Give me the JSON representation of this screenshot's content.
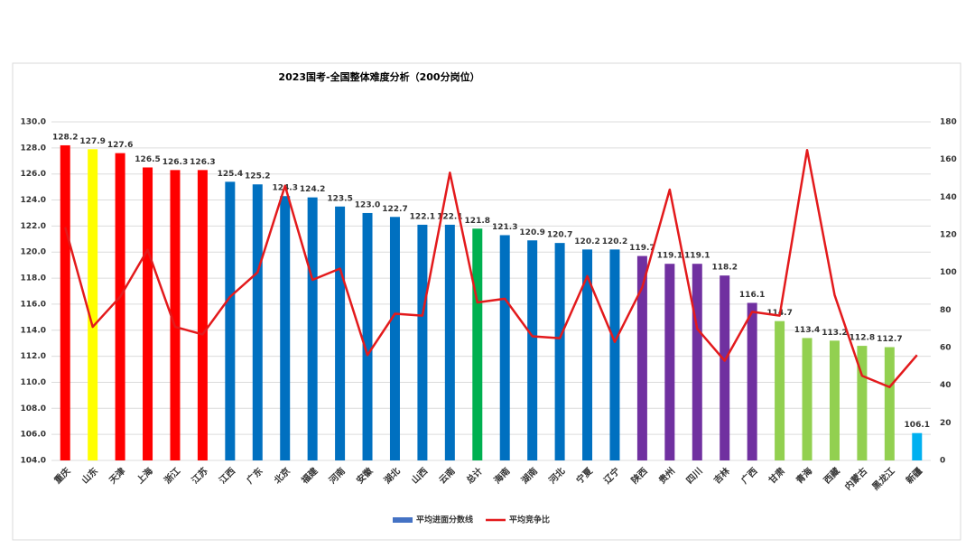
{
  "chart_data": {
    "type": "bar",
    "title": "2023国考-全国整体难度分析（200分岗位）",
    "categories": [
      "重庆",
      "山东",
      "天津",
      "上海",
      "浙江",
      "江苏",
      "江西",
      "广东",
      "北京",
      "福建",
      "河南",
      "安徽",
      "湖北",
      "山西",
      "云南",
      "总计",
      "海南",
      "湖南",
      "河北",
      "宁夏",
      "辽宁",
      "陕西",
      "贵州",
      "四川",
      "吉林",
      "广西",
      "甘肃",
      "青海",
      "西藏",
      "内蒙古",
      "黑龙江",
      "新疆"
    ],
    "category_label_color": "#e00000",
    "series": [
      {
        "name": "平均进面分数线",
        "type": "bar",
        "color": "#4472c4",
        "colors": [
          "#ff0000",
          "#ffff00",
          "#ff0000",
          "#ff0000",
          "#ff0000",
          "#ff0000",
          "#0070c0",
          "#0070c0",
          "#0070c0",
          "#0070c0",
          "#0070c0",
          "#0070c0",
          "#0070c0",
          "#0070c0",
          "#0070c0",
          "#00b050",
          "#0070c0",
          "#0070c0",
          "#0070c0",
          "#0070c0",
          "#0070c0",
          "#7030a0",
          "#7030a0",
          "#7030a0",
          "#7030a0",
          "#7030a0",
          "#92d050",
          "#92d050",
          "#92d050",
          "#92d050",
          "#92d050",
          "#00b0f0"
        ],
        "values": [
          128.2,
          127.9,
          127.6,
          126.5,
          126.3,
          126.3,
          125.4,
          125.2,
          124.3,
          124.2,
          123.5,
          123.0,
          122.7,
          122.1,
          122.1,
          121.8,
          121.3,
          120.9,
          120.7,
          120.2,
          120.2,
          119.7,
          119.1,
          119.1,
          118.2,
          116.1,
          114.7,
          113.4,
          113.2,
          112.8,
          112.7,
          106.1
        ],
        "value_labels": [
          "128.2",
          "127.9",
          "127.6",
          "126.5",
          "126.3",
          "126.3",
          "125.4",
          "125.2",
          "124.3",
          "124.2",
          "123.5",
          "123.0",
          "122.7",
          "122.1",
          "122.1",
          "121.8",
          "121.3",
          "120.9",
          "120.7",
          "120.2",
          "120.2",
          "119.7",
          "119.1",
          "119.1",
          "118.2",
          "116.1",
          "114.7",
          "113.4",
          "113.2",
          "112.8",
          "112.7",
          "106.1"
        ],
        "value_label_colors": [
          "#404040",
          "#e00000",
          "#404040",
          "#404040",
          "#404040",
          "#404040",
          "#404040",
          "#404040",
          "#404040",
          "#404040",
          "#404040",
          "#404040",
          "#404040",
          "#404040",
          "#404040",
          "#e00000",
          "#404040",
          "#404040",
          "#404040",
          "#404040",
          "#404040",
          "#404040",
          "#404040",
          "#404040",
          "#404040",
          "#404040",
          "#404040",
          "#404040",
          "#404040",
          "#404040",
          "#404040",
          "#404040"
        ]
      },
      {
        "name": "平均竞争比",
        "type": "line",
        "axis": "y2",
        "color": "#e31a1c",
        "values": [
          124,
          71,
          87,
          112,
          71,
          67,
          87,
          100,
          146,
          96,
          102,
          56,
          78,
          77,
          153,
          84,
          86,
          66,
          65,
          98,
          63,
          92,
          144,
          70,
          53,
          79,
          77,
          165,
          88,
          45,
          39,
          56
        ]
      }
    ],
    "ylim": [
      104,
      130
    ],
    "yticks": [
      {
        "value": 104,
        "label": "104.0"
      },
      {
        "value": 106,
        "label": "106.0"
      },
      {
        "value": 108,
        "label": "108.0"
      },
      {
        "value": 110,
        "label": "110.0"
      },
      {
        "value": 112,
        "label": "112.0"
      },
      {
        "value": 114,
        "label": "114.0"
      },
      {
        "value": 116,
        "label": "116.0"
      },
      {
        "value": 118,
        "label": "118.0"
      },
      {
        "value": 120,
        "label": "120.0"
      },
      {
        "value": 122,
        "label": "122.0"
      },
      {
        "value": 124,
        "label": "124.0"
      },
      {
        "value": 126,
        "label": "126.0"
      },
      {
        "value": 128,
        "label": "128.0"
      },
      {
        "value": 130,
        "label": "130.0"
      }
    ],
    "y2lim": [
      0,
      180
    ],
    "y2ticks": [
      0,
      20,
      40,
      60,
      80,
      100,
      120,
      140,
      160,
      180
    ],
    "grid": true,
    "legend": "bottom"
  }
}
